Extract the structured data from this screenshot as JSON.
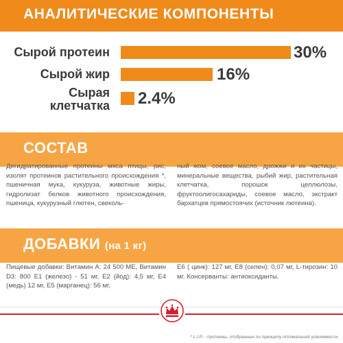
{
  "header": {
    "title": "АНАЛИТИЧЕСКИЕ КОМПОНЕНТЫ"
  },
  "analytics": [
    {
      "label_lines": [
        "Сырой протеин"
      ],
      "value": "30%",
      "percent": 30
    },
    {
      "label_lines": [
        "Сырой жир"
      ],
      "value": "16%",
      "percent": 16
    },
    {
      "label_lines": [
        "Сырая",
        "клетчатка"
      ],
      "value": "2.4%",
      "percent": 2.4
    }
  ],
  "composition": {
    "title": "СОСТАВ",
    "left": "Дегидратированные протеины мяса птицы, рис, изолят протеинов растительного происхождения *, пшеничная мука, кукуруза, животные жиры, гидролизат белков животного происхождения, пшеница, кукурузный глютен, свеколь-",
    "right": "ный жом, соевое масло, дрожжи и их частицы, минеральные вещества, рыбий жир, растительная клетчатка, порошок целлюлозы, фруктоолигосахариды, соевое масло, экстракт бархатцев прямостоячих (источник лютеина)."
  },
  "additives": {
    "title": "ДОБАВКИ",
    "subtitle": "(на 1 кг)",
    "left": "Пищевые добавки: Витамин А: 24 500 МЕ, Витамин D3: 800 Е1 (железо) - 51 мг, Е2 (йод): 4,5 мг, Е4 (медь) 12 мг, Е5 (марганец): 56 мг,",
    "right": "Е6 ( цинк): 127 мг, Е8 (селен): 0,07 мг, L-тирозин: 10 мг. Консерванты: антиоксиданты."
  },
  "footnote": "* L.I.P. - протеины, отобранные по принципу оптимальной усвояемости.",
  "colors": {
    "accent": "#ef8a1b",
    "band": "#f7a544",
    "brand_red": "#d3202e"
  },
  "logo_icon": "royal-canin-crown-logo"
}
